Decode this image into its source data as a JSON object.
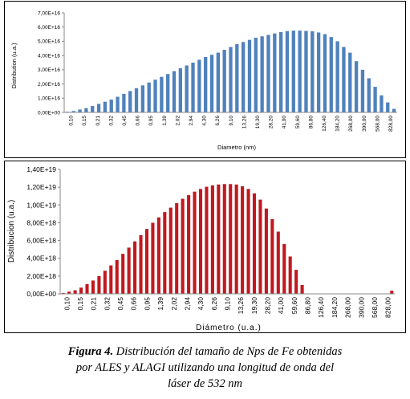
{
  "chart_data": [
    {
      "type": "bar",
      "xlabel": "Diametro (nm)",
      "ylabel": "Distribution (u.a.)",
      "ylim": [
        0,
        7e+16
      ],
      "ytick_labels": [
        "0,00E+00",
        "1,00E+16",
        "2,00E+16",
        "3,00E+16",
        "4,00E+16",
        "5,00E+16",
        "6,00E+16",
        "7,00E+16"
      ],
      "tick_labels": [
        "0,10",
        "0,15",
        "0,21",
        "0,32",
        "0,45",
        "0,66",
        "0,95",
        "1,39",
        "2,02",
        "2,94",
        "4,30",
        "6,26",
        "9,10",
        "13,26",
        "19,30",
        "28,20",
        "41,00",
        "59,60",
        "86,80",
        "126,40",
        "184,20",
        "268,00",
        "390,00",
        "568,00",
        "828,00"
      ],
      "grid": false,
      "bar_color": "#4f81bd",
      "values": [
        500000000000000.0,
        1000000000000000.0,
        2000000000000000.0,
        3000000000000000.0,
        4500000000000000.0,
        6000000000000000.0,
        7500000000000000.0,
        9000000000000000.0,
        1.1e+16,
        1.3e+16,
        1.5e+16,
        1.7e+16,
        1.9e+16,
        2.1e+16,
        2.3e+16,
        2.5e+16,
        2.7e+16,
        2.9e+16,
        3.1e+16,
        3.3e+16,
        3.5e+16,
        3.7e+16,
        3.9e+16,
        4.05e+16,
        4.2e+16,
        4.4e+16,
        4.6e+16,
        4.8e+16,
        4.95e+16,
        5.1e+16,
        5.25e+16,
        5.35e+16,
        5.45e+16,
        5.55e+16,
        5.65e+16,
        5.72e+16,
        5.75e+16,
        5.75e+16,
        5.73e+16,
        5.7e+16,
        5.62e+16,
        5.5e+16,
        5.3e+16,
        5e+16,
        4.6e+16,
        4.2e+16,
        3.6e+16,
        3e+16,
        2.4e+16,
        1.8e+16,
        1.2e+16,
        7000000000000000.0,
        2500000000000000.0
      ]
    },
    {
      "type": "bar",
      "xlabel": "Diámetro (u.a.)",
      "ylabel": "Distribucion (u.a.)",
      "ylim": [
        0,
        1.4e+19
      ],
      "ytick_labels": [
        "0,00E+00",
        "2,00E+18",
        "4,00E+18",
        "6,00E+18",
        "8,00E+18",
        "1,00E+19",
        "1,20E+19",
        "1,40E+19"
      ],
      "tick_labels": [
        "0,10",
        "0,15",
        "0,21",
        "0,32",
        "0,45",
        "0,66",
        "0,95",
        "1,39",
        "2,02",
        "2,94",
        "4,30",
        "6,26",
        "9,10",
        "13,26",
        "19,30",
        "28,20",
        "41,00",
        "59,60",
        "86,80",
        "126,40",
        "184,20",
        "268,00",
        "390,00",
        "568,00",
        "828,00"
      ],
      "grid": false,
      "bar_color": "#c0191f",
      "values": [
        1e+17,
        2.5e+17,
        4e+17,
        7e+17,
        1.1e+18,
        1.5e+18,
        2e+18,
        2.6e+18,
        3.2e+18,
        3.8e+18,
        4.5e+18,
        5.2e+18,
        5.9e+18,
        6.6e+18,
        7.3e+18,
        8e+18,
        8.6e+18,
        9.2e+18,
        9.7e+18,
        1.02e+19,
        1.07e+19,
        1.11e+19,
        1.15e+19,
        1.18e+19,
        1.205e+19,
        1.22e+19,
        1.23e+19,
        1.235e+19,
        1.235e+19,
        1.23e+19,
        1.21e+19,
        1.18e+19,
        1.13e+19,
        1.06e+19,
        9.6e+18,
        8.4e+18,
        7e+18,
        5.6e+18,
        4.2e+18,
        2.7e+18,
        1e+18,
        0,
        0,
        0,
        0,
        0,
        0,
        0,
        0,
        0,
        0,
        0,
        0,
        0,
        0,
        3.5e+17
      ]
    }
  ],
  "caption": {
    "figure_label": "Figura 4.",
    "line1": " Distribución del tamaño de Nps de Fe obtenidas",
    "line2": "por  ALES y ALAGI  utilizando una longitud de onda del",
    "line3": "láser de 532 nm"
  }
}
